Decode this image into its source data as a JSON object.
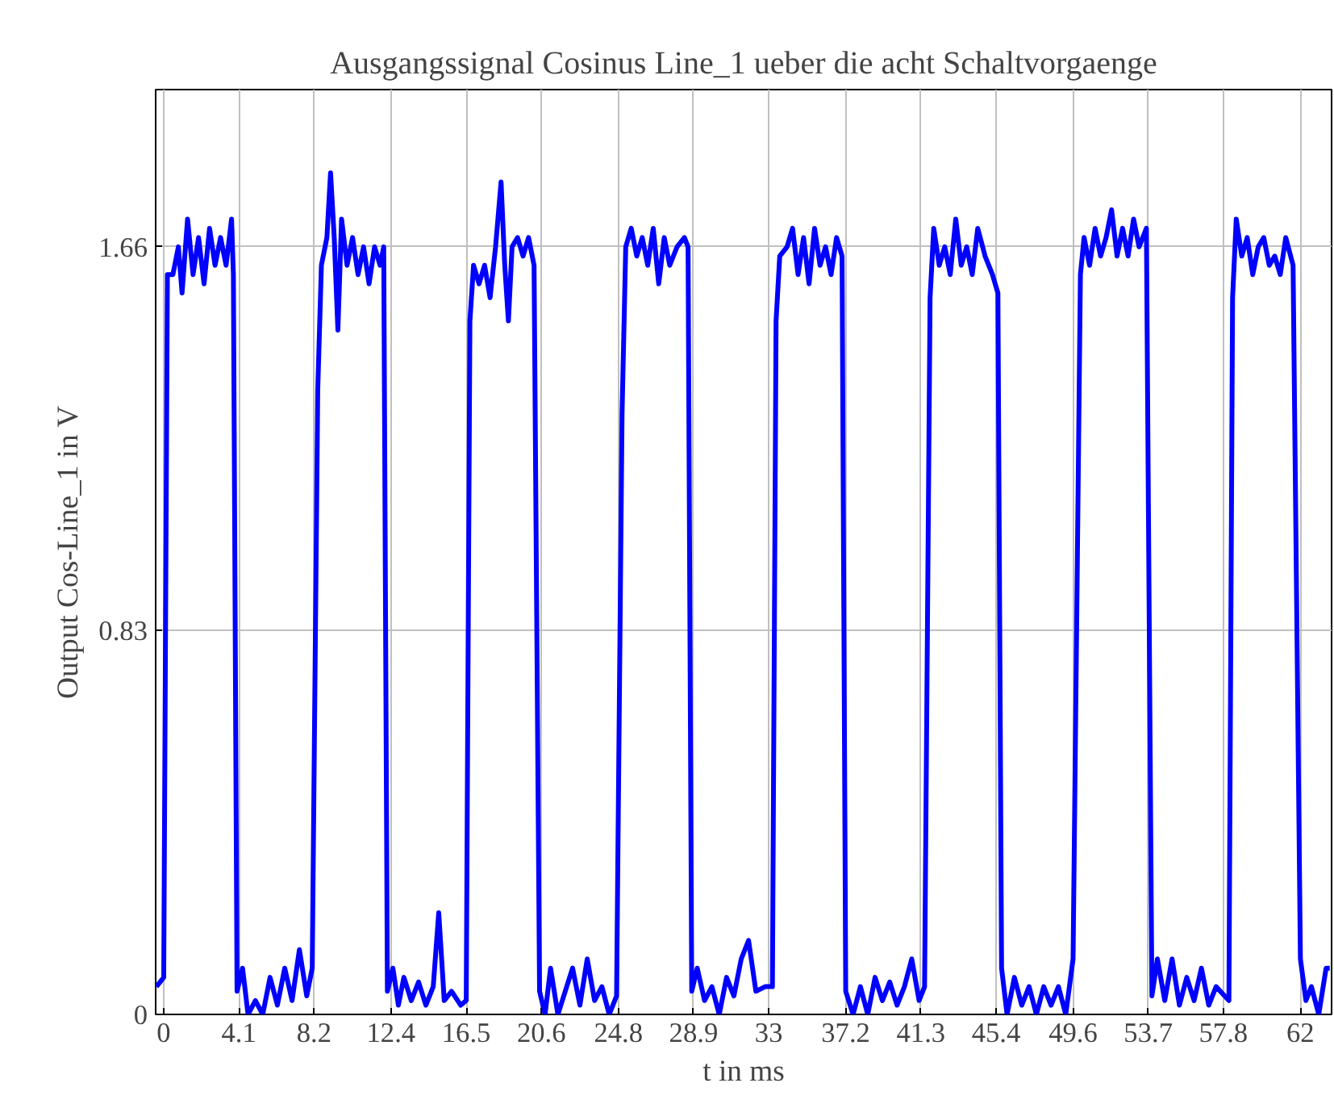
{
  "chart_data": {
    "type": "line",
    "title": "Ausgangssignal Cosinus Line_1 ueber die acht Schaltvorgaenge",
    "xlabel": "t in ms",
    "ylabel": "Output Cos-Line_1 in V",
    "series": [
      {
        "color": "#0000ff",
        "x": [
          -0.4,
          0.0,
          0.2,
          0.5,
          0.8,
          1.0,
          1.3,
          1.6,
          1.9,
          2.2,
          2.5,
          2.8,
          3.1,
          3.4,
          3.7,
          3.8,
          4.0,
          4.3,
          4.6,
          5.0,
          5.4,
          5.8,
          6.2,
          6.6,
          7.0,
          7.4,
          7.8,
          8.1,
          8.4,
          8.6,
          8.9,
          9.1,
          9.3,
          9.5,
          9.7,
          10.0,
          10.3,
          10.6,
          10.9,
          11.2,
          11.5,
          11.8,
          12.0,
          12.2,
          12.5,
          12.8,
          13.1,
          13.5,
          13.9,
          14.3,
          14.7,
          15.0,
          15.3,
          15.7,
          16.2,
          16.5,
          16.7,
          16.9,
          17.2,
          17.5,
          17.8,
          18.1,
          18.4,
          18.6,
          18.8,
          19.0,
          19.3,
          19.6,
          19.9,
          20.2,
          20.5,
          20.8,
          21.1,
          21.5,
          21.9,
          22.3,
          22.7,
          23.1,
          23.5,
          23.9,
          24.3,
          24.7,
          25.0,
          25.2,
          25.5,
          25.8,
          26.1,
          26.4,
          26.7,
          27.0,
          27.3,
          27.6,
          28.0,
          28.4,
          28.6,
          28.8,
          29.1,
          29.5,
          29.9,
          30.3,
          30.7,
          31.1,
          31.5,
          31.9,
          32.3,
          32.8,
          33.2,
          33.4,
          33.6,
          34.0,
          34.3,
          34.6,
          34.9,
          35.2,
          35.5,
          35.8,
          36.1,
          36.4,
          36.7,
          37.0,
          37.2,
          37.6,
          38.0,
          38.4,
          38.8,
          39.2,
          39.6,
          40.0,
          40.4,
          40.8,
          41.2,
          41.5,
          41.8,
          42.0,
          42.3,
          42.6,
          42.9,
          43.2,
          43.5,
          43.8,
          44.1,
          44.4,
          44.8,
          45.2,
          45.5,
          45.7,
          46.0,
          46.4,
          46.8,
          47.2,
          47.6,
          48.0,
          48.4,
          48.8,
          49.2,
          49.6,
          50.0,
          50.2,
          50.5,
          50.8,
          51.1,
          51.4,
          51.7,
          52.0,
          52.3,
          52.6,
          52.9,
          53.2,
          53.6,
          53.9,
          54.2,
          54.6,
          55.0,
          55.4,
          55.8,
          56.2,
          56.6,
          57.0,
          57.4,
          58.1,
          58.3,
          58.5,
          58.8,
          59.1,
          59.4,
          59.7,
          60.0,
          60.3,
          60.6,
          60.9,
          61.2,
          61.6,
          62.0,
          62.3,
          62.6,
          63.0,
          63.4,
          63.6
        ],
        "values": [
          0.06,
          0.08,
          1.6,
          1.6,
          1.66,
          1.56,
          1.72,
          1.6,
          1.68,
          1.58,
          1.7,
          1.62,
          1.68,
          1.62,
          1.72,
          1.6,
          0.05,
          0.1,
          0.0,
          0.03,
          0.0,
          0.08,
          0.02,
          0.1,
          0.03,
          0.14,
          0.04,
          0.1,
          1.35,
          1.62,
          1.68,
          1.82,
          1.68,
          1.48,
          1.72,
          1.62,
          1.68,
          1.6,
          1.66,
          1.58,
          1.66,
          1.62,
          1.66,
          0.05,
          0.1,
          0.02,
          0.08,
          0.03,
          0.07,
          0.02,
          0.06,
          0.22,
          0.03,
          0.05,
          0.02,
          0.03,
          1.5,
          1.62,
          1.58,
          1.62,
          1.55,
          1.66,
          1.8,
          1.62,
          1.5,
          1.66,
          1.68,
          1.64,
          1.68,
          1.62,
          0.05,
          0.0,
          0.1,
          0.0,
          0.05,
          0.1,
          0.02,
          0.12,
          0.03,
          0.06,
          0.0,
          0.04,
          1.3,
          1.66,
          1.7,
          1.64,
          1.68,
          1.62,
          1.7,
          1.58,
          1.68,
          1.62,
          1.66,
          1.68,
          1.66,
          0.05,
          0.1,
          0.03,
          0.06,
          0.0,
          0.08,
          0.04,
          0.12,
          0.16,
          0.05,
          0.06,
          0.06,
          1.5,
          1.64,
          1.66,
          1.7,
          1.6,
          1.68,
          1.58,
          1.7,
          1.62,
          1.66,
          1.6,
          1.68,
          1.64,
          0.05,
          0.0,
          0.06,
          0.0,
          0.08,
          0.03,
          0.07,
          0.02,
          0.06,
          0.12,
          0.03,
          0.06,
          1.55,
          1.7,
          1.62,
          1.66,
          1.6,
          1.72,
          1.62,
          1.66,
          1.6,
          1.7,
          1.64,
          1.6,
          1.56,
          0.1,
          0.0,
          0.08,
          0.02,
          0.06,
          0.0,
          0.06,
          0.02,
          0.06,
          0.0,
          0.12,
          1.6,
          1.68,
          1.62,
          1.7,
          1.64,
          1.68,
          1.74,
          1.64,
          1.7,
          1.64,
          1.72,
          1.66,
          1.7,
          0.04,
          0.12,
          0.03,
          0.12,
          0.02,
          0.08,
          0.03,
          0.1,
          0.02,
          0.06,
          0.03,
          1.55,
          1.72,
          1.64,
          1.68,
          1.6,
          1.66,
          1.68,
          1.62,
          1.64,
          1.6,
          1.68,
          1.62,
          0.12,
          0.03,
          0.06,
          0.0,
          0.1,
          0.1
        ]
      }
    ],
    "xlim": [
      -0.44,
      63.7
    ],
    "ylim": [
      0,
      2.0
    ],
    "xticks": [
      0,
      4.1,
      8.2,
      12.4,
      16.5,
      20.6,
      24.8,
      28.9,
      33,
      37.2,
      41.3,
      45.4,
      49.6,
      53.7,
      57.8,
      62
    ],
    "yticks": [
      0,
      0.83,
      1.66
    ],
    "grid": true,
    "marker": "none",
    "line_style": "solid"
  }
}
